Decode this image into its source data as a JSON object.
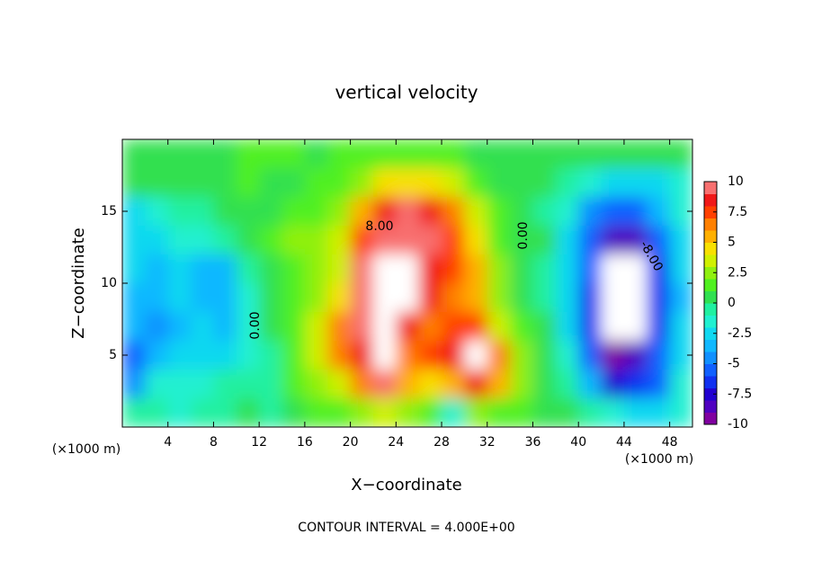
{
  "chart_data": {
    "type": "heatmap",
    "title": "vertical velocity",
    "x_label": "X−coordinate",
    "y_label": "Z−coordinate",
    "x_unit_labels": [
      "(×1000 m)",
      "(×1000 m)"
    ],
    "footer": "CONTOUR INTERVAL = 4.000E+00",
    "contour_labels": [
      "8.00",
      "0.00",
      "0.00",
      "-8.00"
    ],
    "xlim": [
      0,
      50
    ],
    "ylim": [
      0,
      20
    ],
    "xticks": [
      4,
      8,
      12,
      16,
      20,
      24,
      28,
      32,
      36,
      40,
      44,
      48
    ],
    "yticks": [
      5,
      10,
      15
    ],
    "x": [
      1,
      3,
      5,
      7,
      9,
      11,
      13,
      15,
      17,
      19,
      21,
      23,
      25,
      27,
      29,
      31,
      33,
      35,
      37,
      39,
      41,
      43,
      45,
      47,
      49
    ],
    "z": [
      19,
      17,
      15,
      13,
      11,
      9,
      7,
      5,
      3,
      1
    ],
    "values": [
      [
        0,
        0,
        0.5,
        0.5,
        0.5,
        1,
        1,
        1,
        0.5,
        1,
        1,
        1.5,
        1.5,
        1,
        1,
        0.5,
        0.5,
        0.5,
        0.5,
        0,
        0,
        0,
        0,
        0,
        0
      ],
      [
        0.5,
        0,
        0,
        0,
        0.5,
        1,
        0.5,
        0.5,
        1,
        1.5,
        2.5,
        4,
        4.5,
        4,
        3,
        1.5,
        0.5,
        0,
        0,
        -0.5,
        -2,
        -3,
        -3,
        -2.5,
        -1.5
      ],
      [
        -3,
        -2,
        -1,
        -0.5,
        0,
        0.5,
        0.5,
        1,
        1.5,
        2.5,
        5,
        8,
        9,
        8,
        6,
        3,
        1,
        0,
        -0.5,
        -2,
        -5,
        -6,
        -6,
        -4,
        -2
      ],
      [
        -3,
        -3,
        -2,
        -1.5,
        -0.5,
        0,
        1,
        2,
        2,
        3,
        7,
        10,
        9,
        9,
        7,
        4,
        1.5,
        0,
        0,
        -3,
        -6,
        -9,
        -9,
        -6,
        -3
      ],
      [
        -3,
        -3.5,
        -3,
        -4,
        -3.5,
        -1,
        0.5,
        1,
        2,
        3,
        9,
        12,
        11,
        8,
        7,
        5,
        2,
        0,
        -0.5,
        -3,
        -6,
        -12,
        -11,
        -7,
        -3
      ],
      [
        -4,
        -4,
        -3,
        -4,
        -4,
        -2,
        0,
        1.5,
        2.5,
        4,
        10,
        14,
        12,
        8,
        6,
        5,
        2,
        0.5,
        -0.5,
        -3,
        -7,
        -12,
        -12,
        -7,
        -3.5
      ],
      [
        -4,
        -4.5,
        -4,
        -3,
        -4,
        -2,
        0,
        1,
        3,
        6,
        9,
        13,
        8,
        6,
        7,
        7,
        3,
        1,
        0,
        -3,
        -7,
        -12,
        -12,
        -7,
        -3
      ],
      [
        -6,
        -4,
        -3,
        -3,
        -3,
        -2,
        -0.5,
        1,
        3,
        6,
        8,
        12,
        6,
        7,
        8,
        12,
        6,
        2,
        0,
        -2,
        -6,
        -10,
        -9,
        -6,
        -3
      ],
      [
        -5,
        -2,
        -2,
        -2,
        -1,
        -1,
        -0.5,
        1,
        2,
        3,
        6,
        9,
        5,
        4,
        5,
        8,
        5,
        2,
        0,
        -1,
        -4,
        -8,
        -7,
        -6,
        -2
      ],
      [
        -1,
        -1,
        -2,
        -1,
        -1,
        0,
        -1,
        0,
        1,
        1,
        2,
        3,
        2,
        1,
        -2,
        2,
        1,
        1,
        0,
        0,
        -1,
        -2,
        -3,
        -3,
        -2
      ]
    ],
    "clim": [
      -10,
      10
    ],
    "cticks": [
      -10,
      -7.5,
      -5,
      -2.5,
      0,
      2.5,
      5,
      7.5,
      10
    ],
    "colors": [
      "#8000a0",
      "#5000c0",
      "#2000d0",
      "#1030f0",
      "#1060ff",
      "#1090ff",
      "#10b8ff",
      "#10d8f0",
      "#20f0d0",
      "#20f0a0",
      "#30e050",
      "#50f020",
      "#90f010",
      "#d0f000",
      "#f8e000",
      "#ffb000",
      "#ff8000",
      "#ff4000",
      "#f01818",
      "#f87070"
    ],
    "over_color": "#ffffff",
    "under_color": "#ffffff"
  }
}
